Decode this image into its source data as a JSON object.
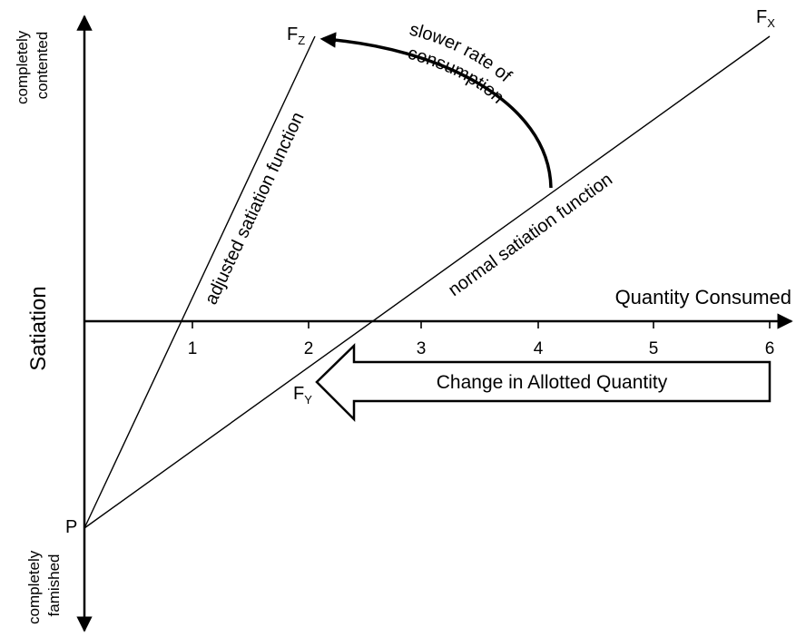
{
  "diagram": {
    "y_axis_label": "Satiation",
    "y_top_label": [
      "completely",
      "contented"
    ],
    "y_bottom_label": [
      "completely",
      "famished"
    ],
    "x_axis_label": "Quantity Consumed",
    "x_ticks": [
      "1",
      "2",
      "3",
      "4",
      "5",
      "6"
    ],
    "origin_point_label": "P",
    "point_labels": {
      "fz": {
        "main": "F",
        "sub": "Z"
      },
      "fx": {
        "main": "F",
        "sub": "X"
      },
      "fy": {
        "main": "F",
        "sub": "Y"
      }
    },
    "adjusted_line_label": "adjusted satiation function",
    "normal_line_label": "normal satiation function",
    "curved_arrow_label": [
      "slower rate of",
      "consumption"
    ],
    "block_arrow_label": "Change in Allotted Quantity"
  }
}
